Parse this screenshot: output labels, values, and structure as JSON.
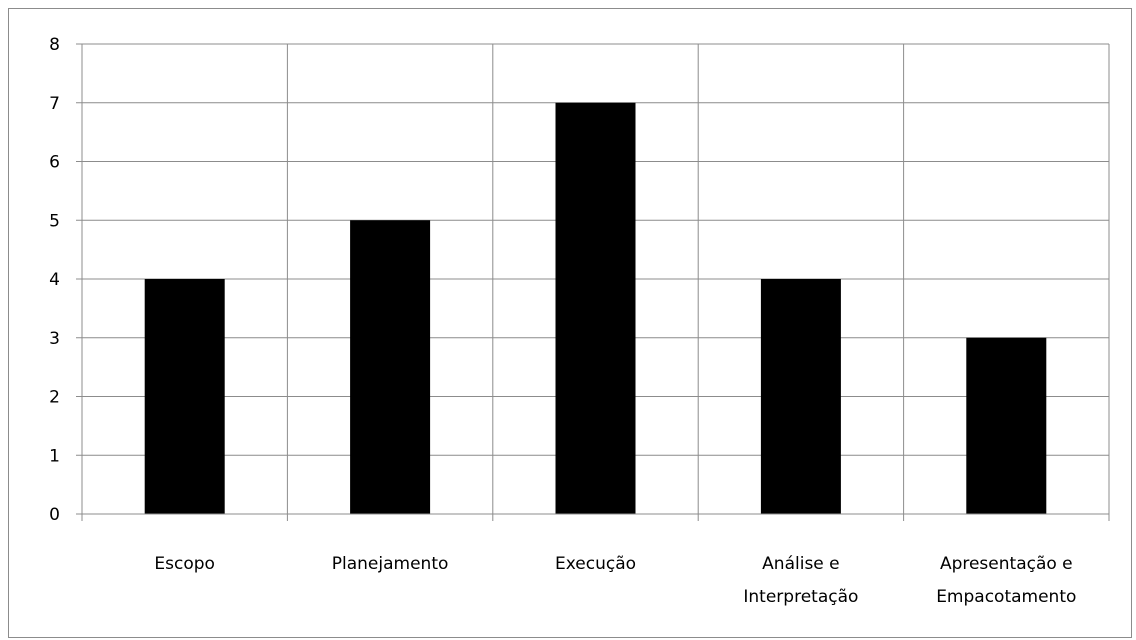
{
  "chart_data": {
    "type": "bar",
    "title": "",
    "xlabel": "",
    "ylabel": "",
    "categories": [
      [
        "Escopo"
      ],
      [
        "Planejamento"
      ],
      [
        "Execução"
      ],
      [
        "Análise e",
        "Interpretação"
      ],
      [
        "Apresentação e",
        "Empacotamento"
      ]
    ],
    "values": [
      4,
      5,
      7,
      4,
      3
    ],
    "ylim": [
      0,
      8
    ],
    "yticks": [
      0,
      1,
      2,
      3,
      4,
      5,
      6,
      7,
      8
    ],
    "grid": "on",
    "legend": "none",
    "colors": {
      "bar": "#000000",
      "grid": "#8c8c8c",
      "axis": "#8c8c8c",
      "background": "#ffffff"
    }
  }
}
